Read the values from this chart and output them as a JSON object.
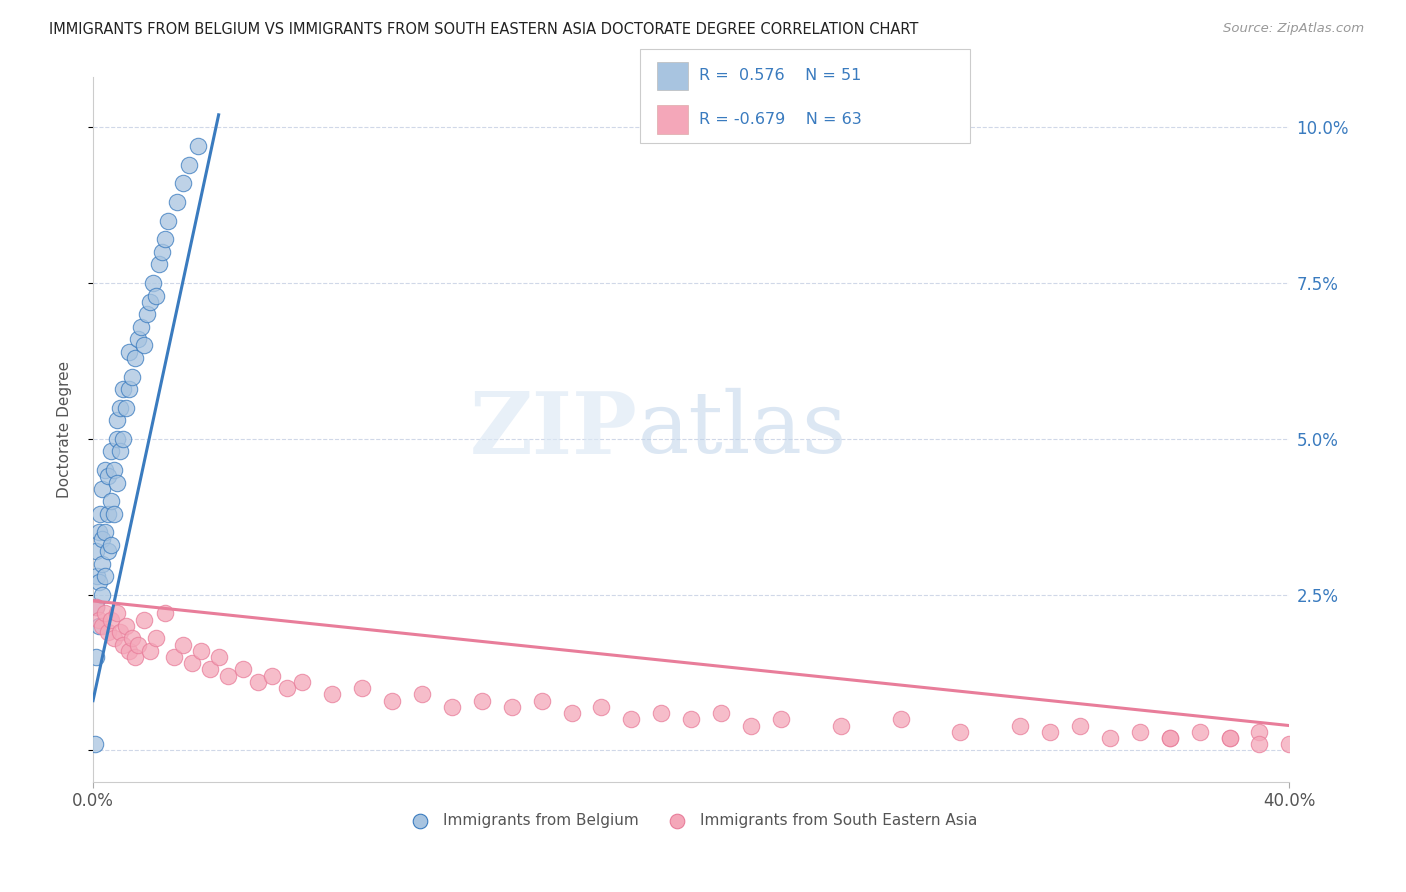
{
  "title": "IMMIGRANTS FROM BELGIUM VS IMMIGRANTS FROM SOUTH EASTERN ASIA DOCTORATE DEGREE CORRELATION CHART",
  "source": "Source: ZipAtlas.com",
  "ylabel": "Doctorate Degree",
  "y_ticks": [
    0.0,
    0.025,
    0.05,
    0.075,
    0.1
  ],
  "y_tick_labels": [
    "",
    "2.5%",
    "5.0%",
    "7.5%",
    "10.0%"
  ],
  "xlim": [
    0.0,
    0.4
  ],
  "ylim": [
    -0.005,
    0.108
  ],
  "belgium_color": "#a8c4e0",
  "sea_color": "#f4a7b9",
  "belgium_line_color": "#3a7bbf",
  "sea_line_color": "#e87d9a",
  "watermark_zip": "ZIP",
  "watermark_atlas": "atlas",
  "background_color": "#ffffff",
  "grid_color": "#d0d8e8",
  "belgium_x": [
    0.0005,
    0.001,
    0.001,
    0.001,
    0.0015,
    0.002,
    0.002,
    0.002,
    0.0025,
    0.003,
    0.003,
    0.003,
    0.003,
    0.004,
    0.004,
    0.004,
    0.005,
    0.005,
    0.005,
    0.006,
    0.006,
    0.006,
    0.007,
    0.007,
    0.008,
    0.008,
    0.008,
    0.009,
    0.009,
    0.01,
    0.01,
    0.011,
    0.012,
    0.012,
    0.013,
    0.014,
    0.015,
    0.016,
    0.017,
    0.018,
    0.019,
    0.02,
    0.021,
    0.022,
    0.023,
    0.024,
    0.025,
    0.028,
    0.03,
    0.032,
    0.035
  ],
  "belgium_y": [
    0.001,
    0.023,
    0.015,
    0.032,
    0.028,
    0.035,
    0.027,
    0.02,
    0.038,
    0.03,
    0.025,
    0.034,
    0.042,
    0.035,
    0.028,
    0.045,
    0.038,
    0.032,
    0.044,
    0.04,
    0.033,
    0.048,
    0.045,
    0.038,
    0.05,
    0.043,
    0.053,
    0.048,
    0.055,
    0.05,
    0.058,
    0.055,
    0.058,
    0.064,
    0.06,
    0.063,
    0.066,
    0.068,
    0.065,
    0.07,
    0.072,
    0.075,
    0.073,
    0.078,
    0.08,
    0.082,
    0.085,
    0.088,
    0.091,
    0.094,
    0.097
  ],
  "sea_x": [
    0.001,
    0.002,
    0.003,
    0.004,
    0.005,
    0.006,
    0.007,
    0.008,
    0.009,
    0.01,
    0.011,
    0.012,
    0.013,
    0.014,
    0.015,
    0.017,
    0.019,
    0.021,
    0.024,
    0.027,
    0.03,
    0.033,
    0.036,
    0.039,
    0.042,
    0.045,
    0.05,
    0.055,
    0.06,
    0.065,
    0.07,
    0.08,
    0.09,
    0.1,
    0.11,
    0.12,
    0.13,
    0.14,
    0.15,
    0.16,
    0.17,
    0.18,
    0.19,
    0.2,
    0.21,
    0.22,
    0.23,
    0.25,
    0.27,
    0.29,
    0.31,
    0.32,
    0.33,
    0.34,
    0.35,
    0.36,
    0.37,
    0.38,
    0.39,
    0.4,
    0.38,
    0.36,
    0.39
  ],
  "sea_y": [
    0.023,
    0.021,
    0.02,
    0.022,
    0.019,
    0.021,
    0.018,
    0.022,
    0.019,
    0.017,
    0.02,
    0.016,
    0.018,
    0.015,
    0.017,
    0.021,
    0.016,
    0.018,
    0.022,
    0.015,
    0.017,
    0.014,
    0.016,
    0.013,
    0.015,
    0.012,
    0.013,
    0.011,
    0.012,
    0.01,
    0.011,
    0.009,
    0.01,
    0.008,
    0.009,
    0.007,
    0.008,
    0.007,
    0.008,
    0.006,
    0.007,
    0.005,
    0.006,
    0.005,
    0.006,
    0.004,
    0.005,
    0.004,
    0.005,
    0.003,
    0.004,
    0.003,
    0.004,
    0.002,
    0.003,
    0.002,
    0.003,
    0.002,
    0.003,
    0.001,
    0.002,
    0.002,
    0.001
  ],
  "bel_line_x": [
    0.0,
    0.042
  ],
  "bel_line_y": [
    0.008,
    0.102
  ],
  "sea_line_x": [
    0.0,
    0.4
  ],
  "sea_line_y": [
    0.024,
    0.004
  ]
}
